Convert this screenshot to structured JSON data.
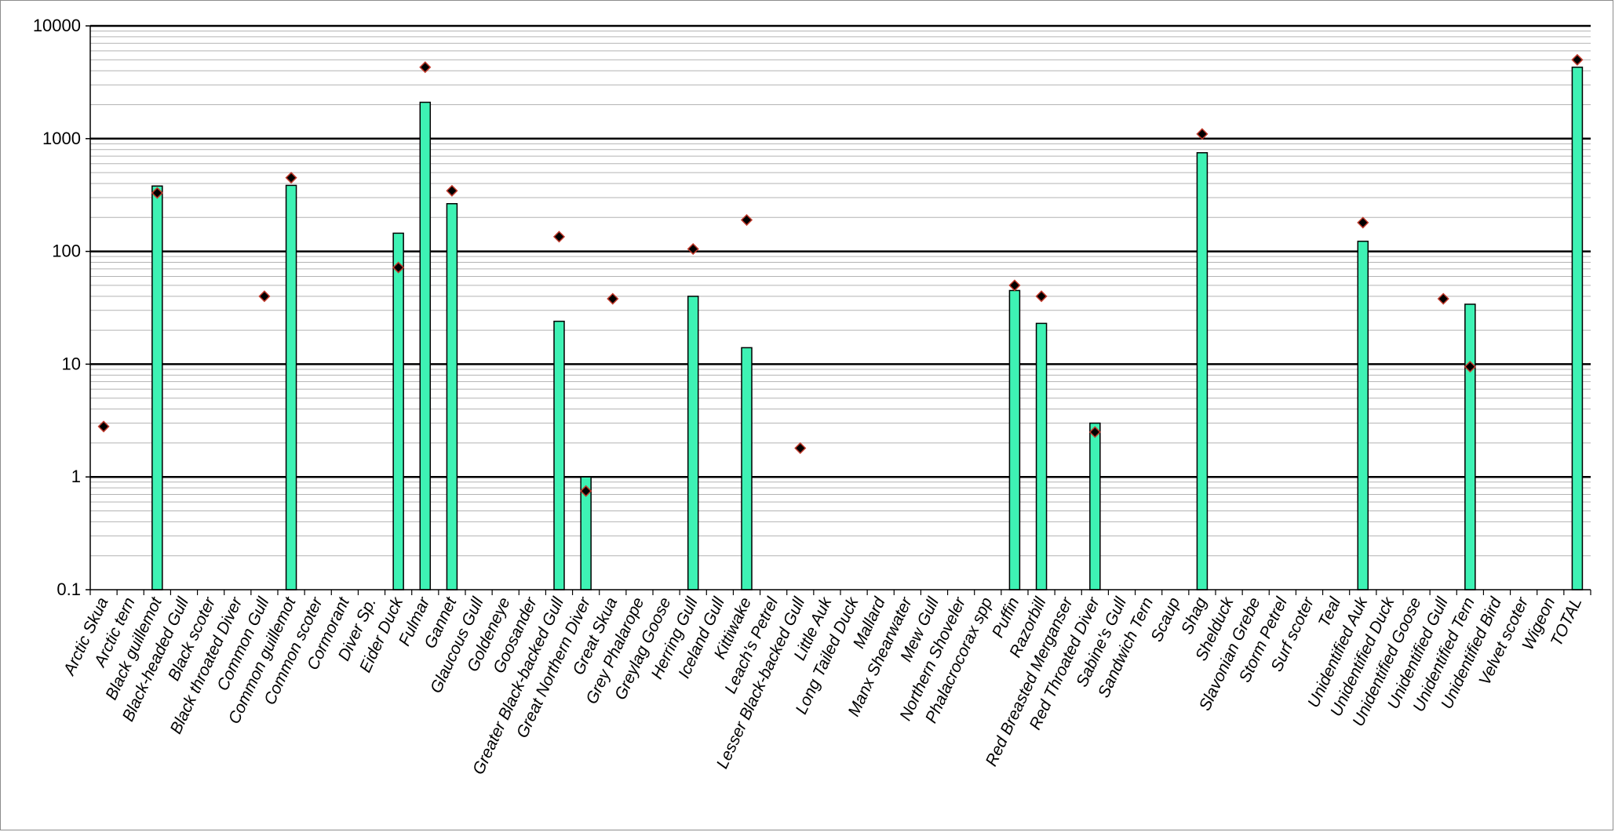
{
  "chart_data": {
    "type": "bar",
    "title": "",
    "xlabel": "",
    "ylabel": "",
    "y_scale": "log",
    "ylim": [
      0.1,
      10000
    ],
    "y_ticks": [
      "0.1",
      "1",
      "10",
      "100",
      "1000",
      "10000"
    ],
    "grid": "major and minor horizontal gridlines",
    "legend": "none",
    "colors": {
      "bar_fill": "#3ef2b4",
      "bar_stroke": "#000000",
      "marker_fill": "#000000",
      "marker_stroke": "#c0392b"
    },
    "categories": [
      "Arctic Skua",
      "Arctic tern",
      "Black guillemot",
      "Black-headed Gull",
      "Black scoter",
      "Black throated Diver",
      "Common Gull",
      "Common guillemot",
      "Common scoter",
      "Cormorant",
      "Diver Sp.",
      "Eider Duck",
      "Fulmar",
      "Gannet",
      "Glaucous Gull",
      "Goldeneye",
      "Goosander",
      "Greater Black-backed Gull",
      "Great Northern Diver",
      "Great Skua",
      "Grey Phalarope",
      "Greylag Goose",
      "Herring Gull",
      "Iceland Gull",
      "Kittiwake",
      "Leach's Petrel",
      "Lesser Black-backed Gull",
      "Little Auk",
      "Long Tailed Duck",
      "Mallard",
      "Manx Shearwater",
      "Mew Gull",
      "Northern Shoveler",
      "Phalacrocorax spp",
      "Puffin",
      "Razorbill",
      "Red Breasted Merganser",
      "Red Throated Diver",
      "Sabine's Gull",
      "Sandwich Tern",
      "Scaup",
      "Shag",
      "Shelduck",
      "Slavonian Grebe",
      "Storm Petrel",
      "Surf scoter",
      "Teal",
      "Unidentified Auk",
      "Unidentified Duck",
      "Unidentified Goose",
      "Unidentified Gull",
      "Unidentified Tern",
      "Unidentified Bird",
      "Velvet scoter",
      "Wigeon",
      "TOTAL"
    ],
    "series": [
      {
        "type": "bar",
        "values": [
          null,
          null,
          380,
          null,
          null,
          null,
          null,
          385,
          null,
          null,
          null,
          145,
          2100,
          265,
          null,
          null,
          null,
          24,
          1,
          null,
          null,
          null,
          40,
          null,
          14,
          null,
          null,
          null,
          null,
          null,
          null,
          null,
          null,
          null,
          45,
          23,
          null,
          3,
          null,
          null,
          null,
          750,
          null,
          null,
          null,
          null,
          null,
          123,
          null,
          null,
          null,
          34,
          null,
          null,
          null,
          4300
        ]
      },
      {
        "type": "scatter",
        "marker": "diamond",
        "values": [
          2.8,
          null,
          330,
          null,
          null,
          null,
          40,
          450,
          null,
          null,
          null,
          72,
          4300,
          345,
          null,
          null,
          null,
          135,
          0.75,
          38,
          null,
          null,
          105,
          null,
          190,
          null,
          1.8,
          null,
          null,
          null,
          null,
          null,
          null,
          null,
          50,
          40,
          null,
          2.5,
          null,
          null,
          null,
          1100,
          null,
          null,
          null,
          null,
          null,
          180,
          null,
          null,
          38,
          9.5,
          null,
          null,
          null,
          5000
        ]
      }
    ]
  }
}
